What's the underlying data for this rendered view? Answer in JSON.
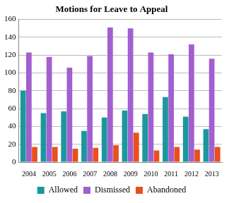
{
  "chart_data": {
    "type": "bar",
    "title": "Motions for Leave to Appeal",
    "categories": [
      "2004",
      "2005",
      "2006",
      "2007",
      "2008",
      "2009",
      "2010",
      "2011",
      "2012",
      "2013"
    ],
    "series": [
      {
        "name": "Allowed",
        "color": "#1b979d",
        "values": [
          80,
          55,
          57,
          35,
          50,
          58,
          54,
          73,
          51,
          37
        ]
      },
      {
        "name": "Dismissed",
        "color": "#a25fd0",
        "values": [
          123,
          118,
          106,
          119,
          151,
          150,
          123,
          121,
          132,
          116
        ]
      },
      {
        "name": "Abandoned",
        "color": "#e8501c",
        "values": [
          17,
          17,
          15,
          16,
          19,
          33,
          13,
          17,
          14,
          17
        ]
      }
    ],
    "ylim": [
      0,
      160
    ],
    "yticks": [
      0,
      20,
      40,
      60,
      80,
      100,
      120,
      140,
      160
    ],
    "grid": true,
    "legend": "bottom"
  }
}
